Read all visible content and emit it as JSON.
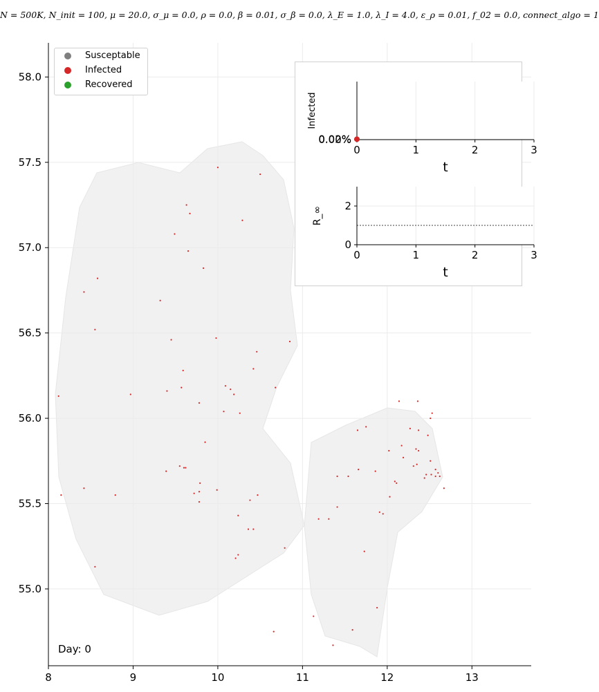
{
  "title": "N = 500K, N_init = 100, μ = 20.0, σ_μ = 0.0, ρ = 0.0, β = 0.01, σ_β = 0.0, λ_E = 1.0, λ_I = 4.0, ε_ρ = 0.01, f_02 = 0.0, connect_algo = 1",
  "day_label": "Day: 0",
  "legend": [
    {
      "label": "Susceptable",
      "color": "#7f7f7f"
    },
    {
      "label": "Infected",
      "color": "#d62728"
    },
    {
      "label": "Recovered",
      "color": "#2ca02c"
    }
  ],
  "chart_data": [
    {
      "type": "scatter",
      "title": "",
      "xlabel": "",
      "ylabel": "",
      "xlim": [
        8,
        13.7
      ],
      "ylim": [
        54.55,
        58.2
      ],
      "x_ticks": [
        "8",
        "9",
        "10",
        "11",
        "12",
        "13"
      ],
      "y_ticks": [
        "55.0",
        "55.5",
        "56.0",
        "56.5",
        "57.0",
        "57.5",
        "58.0"
      ],
      "grid": true,
      "legend_position": "top-left",
      "series": [
        {
          "name": "Infected",
          "color": "#d62728",
          "points": [
            [
              10.0,
              57.47
            ],
            [
              10.5,
              57.43
            ],
            [
              9.63,
              57.25
            ],
            [
              9.67,
              57.2
            ],
            [
              10.29,
              57.16
            ],
            [
              9.49,
              57.08
            ],
            [
              9.65,
              56.98
            ],
            [
              9.83,
              56.88
            ],
            [
              8.58,
              56.82
            ],
            [
              8.42,
              56.74
            ],
            [
              9.32,
              56.69
            ],
            [
              8.55,
              56.52
            ],
            [
              9.45,
              56.46
            ],
            [
              9.98,
              56.47
            ],
            [
              10.85,
              56.45
            ],
            [
              10.46,
              56.39
            ],
            [
              10.42,
              56.29
            ],
            [
              9.59,
              56.28
            ],
            [
              9.57,
              56.18
            ],
            [
              10.09,
              56.19
            ],
            [
              10.15,
              56.17
            ],
            [
              10.68,
              56.18
            ],
            [
              9.4,
              56.16
            ],
            [
              10.19,
              56.14
            ],
            [
              8.97,
              56.14
            ],
            [
              8.12,
              56.13
            ],
            [
              12.14,
              56.1
            ],
            [
              12.36,
              56.1
            ],
            [
              9.78,
              56.09
            ],
            [
              10.07,
              56.04
            ],
            [
              10.26,
              56.03
            ],
            [
              12.53,
              56.03
            ],
            [
              12.51,
              56.0
            ],
            [
              12.27,
              55.94
            ],
            [
              12.37,
              55.93
            ],
            [
              11.65,
              55.93
            ],
            [
              11.75,
              55.95
            ],
            [
              12.48,
              55.9
            ],
            [
              9.85,
              55.86
            ],
            [
              12.17,
              55.84
            ],
            [
              12.34,
              55.82
            ],
            [
              12.37,
              55.81
            ],
            [
              12.02,
              55.81
            ],
            [
              12.19,
              55.77
            ],
            [
              12.51,
              55.75
            ],
            [
              12.35,
              55.73
            ],
            [
              9.55,
              55.72
            ],
            [
              9.6,
              55.71
            ],
            [
              9.62,
              55.71
            ],
            [
              12.31,
              55.72
            ],
            [
              12.57,
              55.7
            ],
            [
              11.66,
              55.7
            ],
            [
              9.39,
              55.69
            ],
            [
              11.86,
              55.69
            ],
            [
              12.6,
              55.68
            ],
            [
              12.46,
              55.67
            ],
            [
              12.52,
              55.67
            ],
            [
              12.57,
              55.66
            ],
            [
              12.44,
              55.65
            ],
            [
              12.62,
              55.66
            ],
            [
              11.41,
              55.66
            ],
            [
              11.54,
              55.66
            ],
            [
              12.09,
              55.63
            ],
            [
              12.11,
              55.62
            ],
            [
              9.79,
              55.62
            ],
            [
              8.42,
              55.59
            ],
            [
              12.67,
              55.59
            ],
            [
              9.72,
              55.56
            ],
            [
              9.78,
              55.57
            ],
            [
              9.99,
              55.58
            ],
            [
              8.15,
              55.55
            ],
            [
              8.79,
              55.55
            ],
            [
              12.03,
              55.54
            ],
            [
              9.78,
              55.51
            ],
            [
              10.38,
              55.52
            ],
            [
              10.47,
              55.55
            ],
            [
              11.41,
              55.48
            ],
            [
              11.91,
              55.45
            ],
            [
              11.95,
              55.44
            ],
            [
              10.24,
              55.43
            ],
            [
              11.19,
              55.41
            ],
            [
              11.31,
              55.41
            ],
            [
              10.36,
              55.35
            ],
            [
              10.42,
              55.35
            ],
            [
              10.79,
              55.24
            ],
            [
              11.73,
              55.22
            ],
            [
              10.24,
              55.2
            ],
            [
              10.21,
              55.18
            ],
            [
              8.55,
              55.13
            ],
            [
              11.88,
              54.89
            ],
            [
              11.13,
              54.84
            ],
            [
              11.59,
              54.76
            ],
            [
              10.66,
              54.75
            ],
            [
              11.36,
              54.67
            ]
          ]
        }
      ]
    },
    {
      "type": "line",
      "title": "",
      "xlabel": "t",
      "ylabel": "Infected",
      "xlim": [
        0,
        3
      ],
      "ylim": [
        0,
        0.025
      ],
      "x_ticks": [
        "0",
        "1",
        "2",
        "3"
      ],
      "y_ticks": [
        "0.00%",
        "0.02%"
      ],
      "grid": true,
      "series": [
        {
          "name": "Infected",
          "color": "#d62728",
          "x": [
            0
          ],
          "y": [
            0.02
          ]
        }
      ]
    },
    {
      "type": "line",
      "title": "",
      "xlabel": "t",
      "ylabel": "R_∞",
      "xlim": [
        0,
        3
      ],
      "ylim": [
        0,
        3
      ],
      "x_ticks": [
        "0",
        "1",
        "2",
        "3"
      ],
      "y_ticks": [
        "0",
        "2"
      ],
      "grid": true,
      "reference_line": {
        "y": 1,
        "style": "dotted"
      },
      "series": []
    }
  ]
}
